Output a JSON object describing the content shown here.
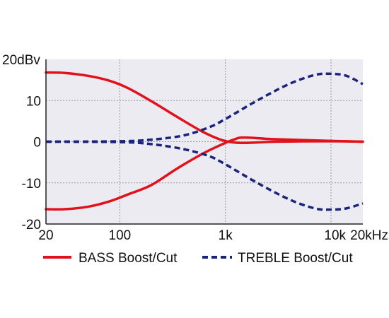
{
  "chart_data": {
    "type": "line",
    "x_scale": "log",
    "xlim": [
      20,
      20000
    ],
    "ylim": [
      -20,
      20
    ],
    "grid": true,
    "legend_position": "bottom",
    "y_ticks": [
      {
        "value": 20,
        "label": "20dBv"
      },
      {
        "value": 10,
        "label": "10"
      },
      {
        "value": 0,
        "label": "0"
      },
      {
        "value": -10,
        "label": "-10"
      },
      {
        "value": -20,
        "label": "-20"
      }
    ],
    "x_ticks": [
      {
        "value": 20,
        "label": "20"
      },
      {
        "value": 100,
        "label": "100"
      },
      {
        "value": 1000,
        "label": "1k"
      },
      {
        "value": 10000,
        "label": "10k"
      },
      {
        "value": 20000,
        "label": "20kHz"
      }
    ],
    "vertical_gridlines": [
      100,
      1000,
      10000
    ],
    "horizontal_gridlines": [
      10,
      0,
      -10
    ],
    "series": [
      {
        "name": "BASS Boost/Cut",
        "style": "solid",
        "color": "#e0121b",
        "curves": [
          {
            "x": [
              20,
              30,
              50,
              80,
              120,
              200,
              350,
              600,
              900,
              1200,
              1600,
              3000,
              10000,
              20000
            ],
            "y": [
              16.8,
              16.7,
              16.0,
              14.8,
              13.0,
              9.8,
              6.0,
              2.5,
              0.5,
              -0.2,
              -0.3,
              0.0,
              0.1,
              0.0
            ]
          },
          {
            "x": [
              20,
              30,
              50,
              80,
              120,
              200,
              350,
              600,
              900,
              1200,
              1500,
              3000,
              10000,
              20000
            ],
            "y": [
              -16.4,
              -16.4,
              -15.8,
              -14.5,
              -12.8,
              -10.5,
              -6.5,
              -3.0,
              -0.8,
              0.5,
              1.0,
              0.6,
              0.2,
              0.0
            ]
          }
        ]
      },
      {
        "name": "TREBLE Boost/Cut",
        "style": "dashed",
        "color": "#1a237e",
        "curves": [
          {
            "x": [
              20,
              100,
              200,
              400,
              700,
              1000,
              2000,
              4000,
              7000,
              10000,
              14000,
              20000
            ],
            "y": [
              0.0,
              0.1,
              0.5,
              1.5,
              3.5,
              5.5,
              10.0,
              14.0,
              16.2,
              16.5,
              16.0,
              14.0
            ]
          },
          {
            "x": [
              20,
              100,
              200,
              400,
              700,
              1000,
              2000,
              4000,
              7000,
              10000,
              14000,
              20000
            ],
            "y": [
              0.0,
              -0.1,
              -0.6,
              -1.8,
              -3.5,
              -5.5,
              -10.0,
              -14.0,
              -16.2,
              -16.5,
              -16.2,
              -15.0
            ]
          }
        ]
      }
    ]
  }
}
